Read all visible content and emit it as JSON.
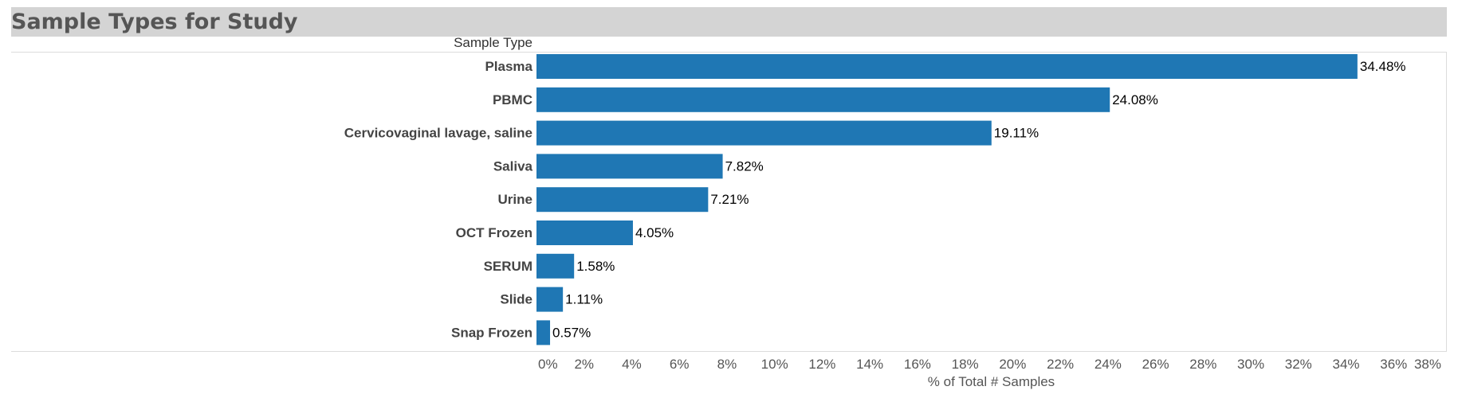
{
  "header": {
    "title": "Sample Types for Study"
  },
  "chart_data": {
    "type": "bar",
    "orientation": "horizontal",
    "title": "Sample Types for Study",
    "row_header": "Sample Type",
    "xlabel": "% of Total # Samples",
    "ylabel": "Sample Type",
    "xlim": [
      0,
      38
    ],
    "x_ticks": [
      0,
      2,
      4,
      6,
      8,
      10,
      12,
      14,
      16,
      18,
      20,
      22,
      24,
      26,
      28,
      30,
      32,
      34,
      36,
      38
    ],
    "x_tick_labels": [
      "0%",
      "2%",
      "4%",
      "6%",
      "8%",
      "10%",
      "12%",
      "14%",
      "16%",
      "18%",
      "20%",
      "22%",
      "24%",
      "26%",
      "28%",
      "30%",
      "32%",
      "34%",
      "36%",
      "38%"
    ],
    "categories": [
      "Plasma",
      "PBMC",
      "Cervicovaginal lavage, saline",
      "Saliva",
      "Urine",
      "OCT Frozen",
      "SERUM",
      "Slide",
      "Snap Frozen"
    ],
    "values": [
      34.48,
      24.08,
      19.11,
      7.82,
      7.21,
      4.05,
      1.58,
      1.11,
      0.57
    ],
    "data_labels": [
      "34.48%",
      "24.08%",
      "19.11%",
      "7.82%",
      "7.21%",
      "4.05%",
      "1.58%",
      "1.11%",
      "0.57%"
    ],
    "grid": false,
    "bar_color": "#1f77b4"
  }
}
